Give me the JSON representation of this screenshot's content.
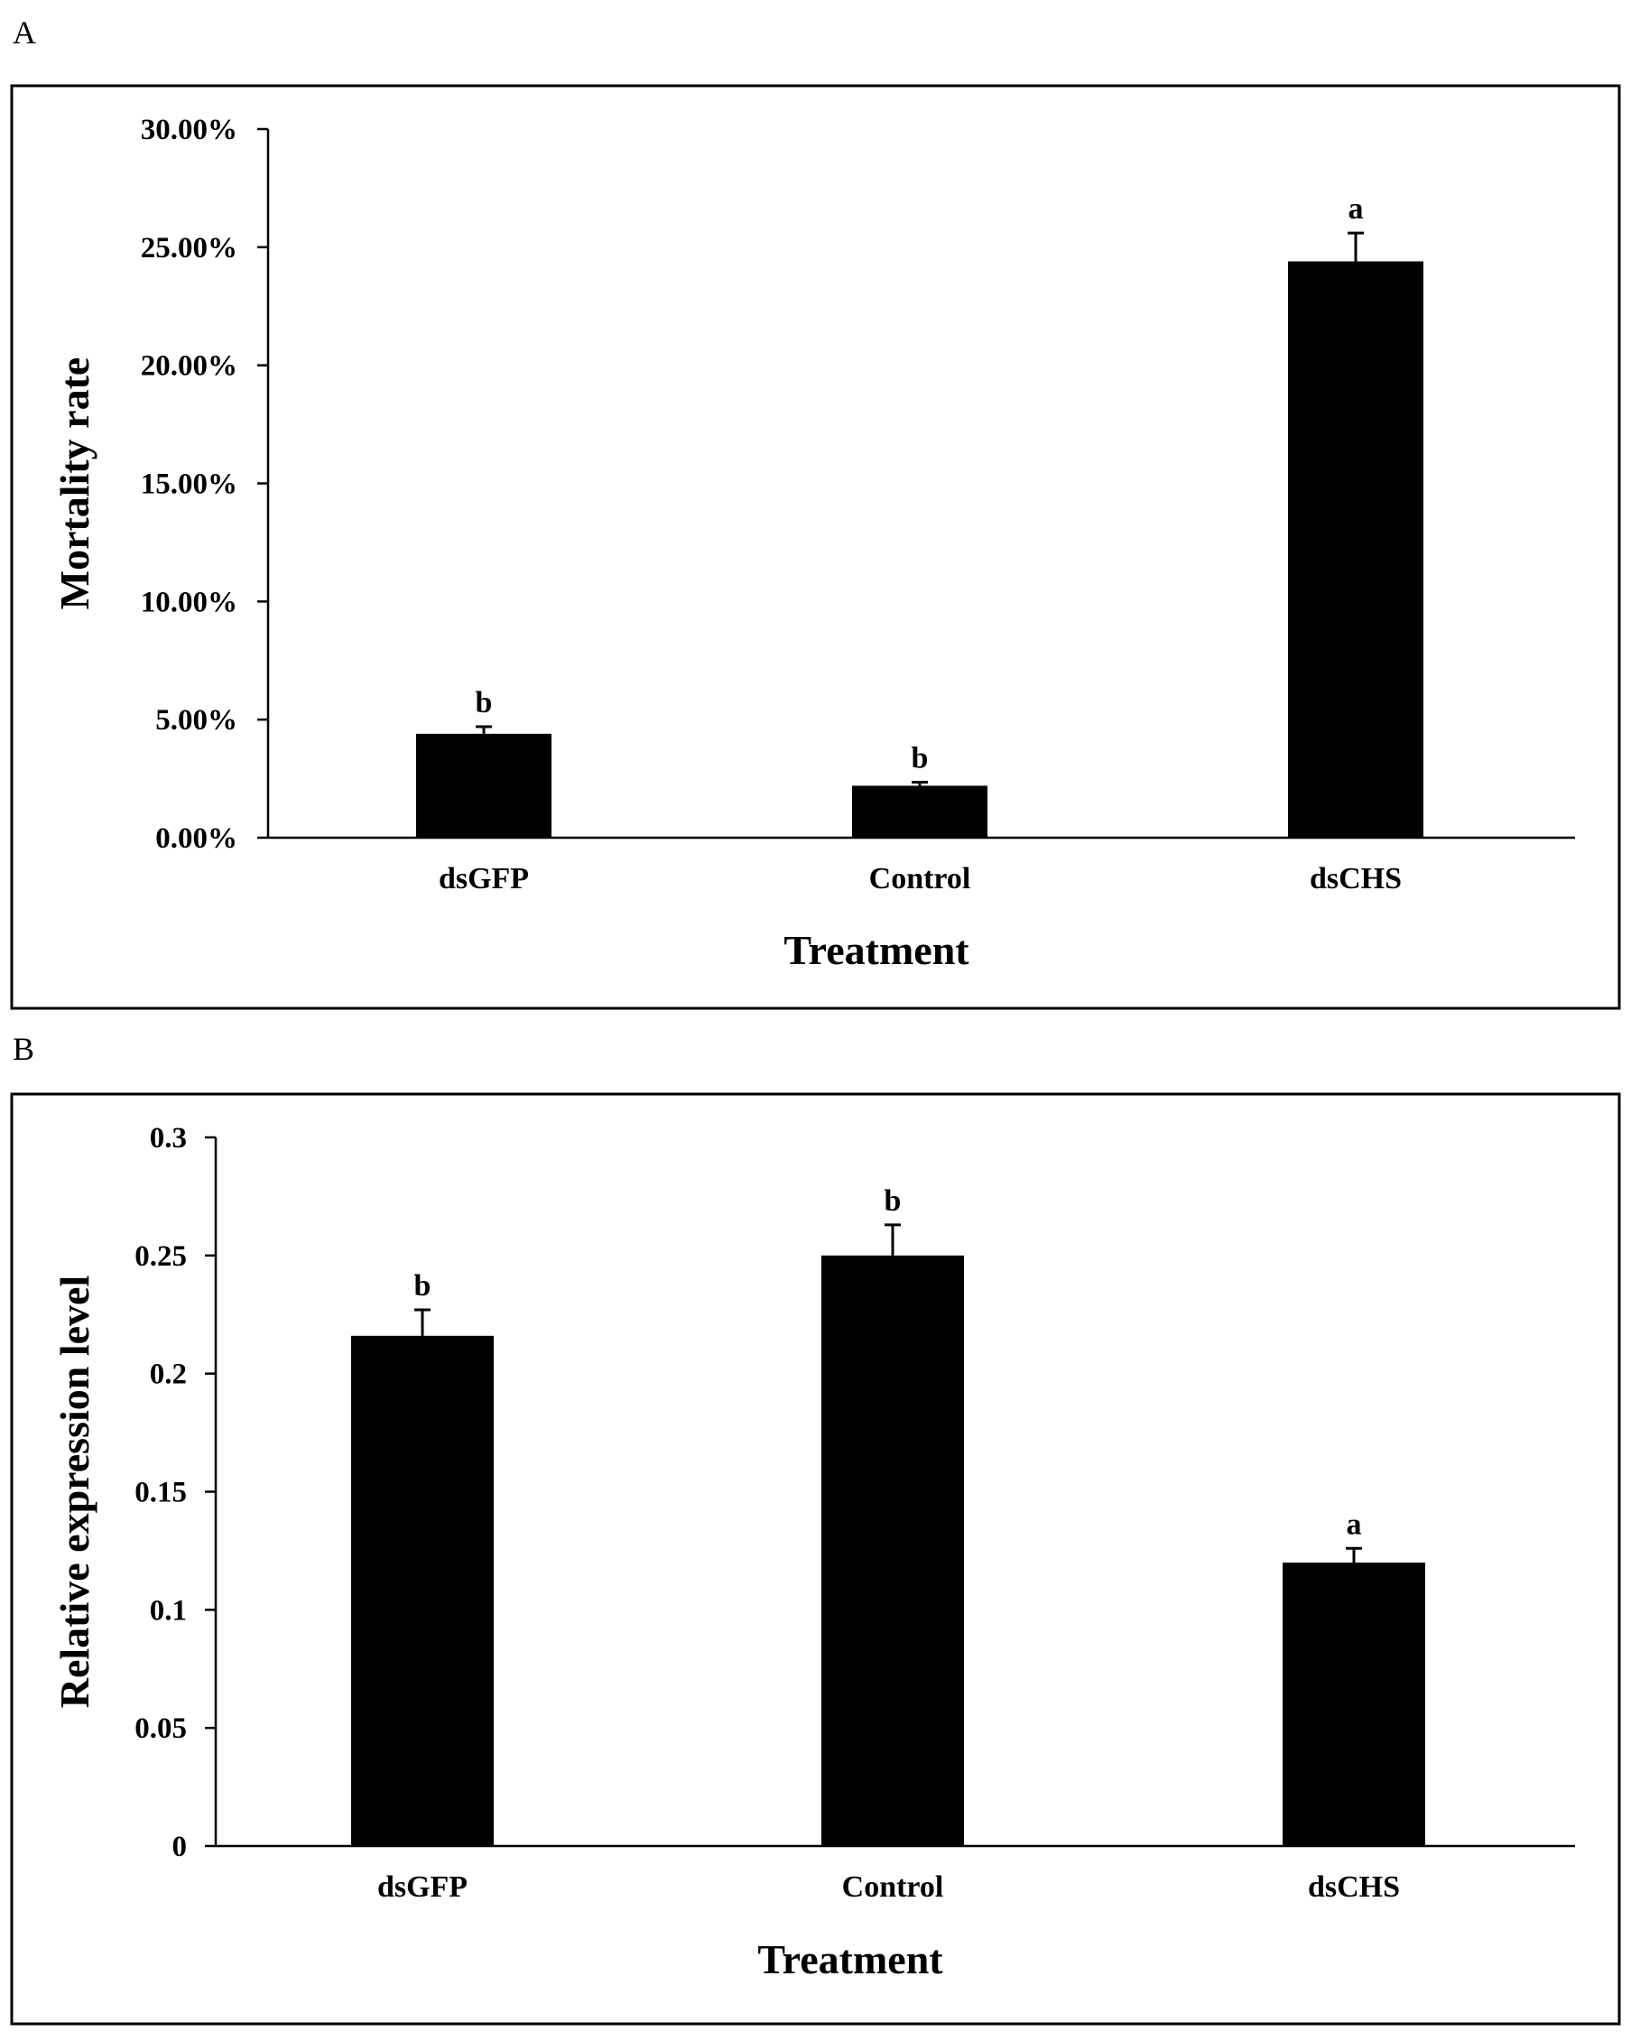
{
  "figure": {
    "panels": [
      {
        "letter": "A",
        "chart": "A"
      },
      {
        "letter": "B",
        "chart": "B"
      }
    ]
  },
  "chart_data": [
    {
      "id": "A",
      "type": "bar",
      "title": "",
      "xlabel": "Treatment",
      "ylabel": "Mortality rate",
      "categories": [
        "dsGFP",
        "Control",
        "dsCHS"
      ],
      "values": [
        4.4,
        2.2,
        24.4
      ],
      "errors": [
        0.3,
        0.15,
        1.2
      ],
      "significance": [
        "b",
        "b",
        "a"
      ],
      "ylim": [
        0,
        30
      ],
      "yticks": [
        0,
        5,
        10,
        15,
        20,
        25,
        30
      ],
      "ytick_labels": [
        "0.00%",
        "5.00%",
        "10.00%",
        "15.00%",
        "20.00%",
        "25.00%",
        "30.00%"
      ],
      "bar_color": "#000000"
    },
    {
      "id": "B",
      "type": "bar",
      "title": "",
      "xlabel": "Treatment",
      "ylabel": "Relative expression level",
      "categories": [
        "dsGFP",
        "Control",
        "dsCHS"
      ],
      "values": [
        0.216,
        0.25,
        0.12
      ],
      "errors": [
        0.011,
        0.013,
        0.006
      ],
      "significance": [
        "b",
        "b",
        "a"
      ],
      "ylim": [
        0,
        0.3
      ],
      "yticks": [
        0,
        0.05,
        0.1,
        0.15,
        0.2,
        0.25,
        0.3
      ],
      "ytick_labels": [
        "0",
        "0.05",
        "0.1",
        "0.15",
        "0.2",
        "0.25",
        "0.3"
      ],
      "bar_color": "#000000"
    }
  ]
}
